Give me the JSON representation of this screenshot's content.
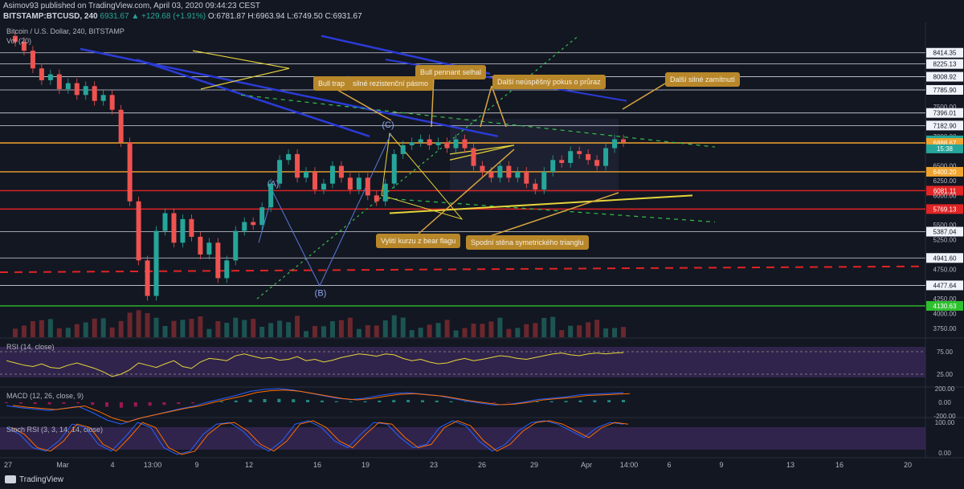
{
  "header": {
    "author_line": "Asimov93 published on TradingView.com, April 03, 2020 09:44:23 CEST",
    "symbol": "BITSTAMP:BTCUSD, 240",
    "last": "6931.67",
    "change": "▲ +129.68 (+1.91%)",
    "ohlc": "O:6781.87 H:6963.94 L:6749.50 C:6931.67"
  },
  "legends": {
    "main": "Bitcoin / U.S. Dollar, 240, BITSTAMP",
    "vol": "Vol (20)",
    "rsi": "RSI (14, close)",
    "macd": "MACD (12, 26, close, 9)",
    "stoch": "Stoch RSI (3, 3, 14, 14, close)"
  },
  "footer": {
    "brand": "TradingView"
  },
  "colors": {
    "background": "#131722",
    "up": "#26a69a",
    "down": "#ef5350",
    "orange": "#f0a430",
    "yellow": "#e6d43a",
    "blue_channel": "#2b3bd6",
    "green_dashed": "#35c04a",
    "red_level": "#e02424",
    "green_level": "#2ec02e",
    "note_bg": "#b8872a",
    "rsi_band": "#3d2b5e"
  },
  "annotations": [
    {
      "key": "bull_trap",
      "text": "Bull trap"
    },
    {
      "key": "silne",
      "text": "silné rezistenční pásmo"
    },
    {
      "key": "pennant",
      "text": "Bull pennant selhal"
    },
    {
      "key": "dalsi1",
      "text": "Další neúspěšný pokus o průraz"
    },
    {
      "key": "dalsi2",
      "text": "Další silné zamítnutí"
    },
    {
      "key": "vyliti",
      "text": "Vylití kurzu z bear flagu"
    },
    {
      "key": "spodni",
      "text": "Spodní stěna symetrického trianglu"
    }
  ],
  "wave_labels": [
    "(A)",
    "(B)",
    "(C)"
  ],
  "chart_data": {
    "type": "candlestick",
    "price_axis": {
      "ticks": [
        "8414.35",
        "8225.13",
        "8008.92",
        "7785.90",
        "7500.00",
        "7396.01",
        "7182.90",
        "7000.00",
        "6931.67",
        "6888.67",
        "6500.00",
        "6400.20",
        "6250.00",
        "6081.11",
        "6000.00",
        "5769.13",
        "5500.00",
        "5387.04",
        "5250.00",
        "4941.60",
        "4750.00",
        "4477.64",
        "4250.00",
        "4130.63",
        "4000.00",
        "3750.00"
      ],
      "highlighted": [
        {
          "label": "6931.67",
          "color": "#26a69a"
        },
        {
          "label": "15:38",
          "color": "#26a69a"
        },
        {
          "label": "6888.67",
          "color": "#f0a430"
        },
        {
          "label": "6400.20",
          "color": "#f0a430"
        },
        {
          "label": "6081.11",
          "color": "#e02424"
        },
        {
          "label": "5769.13",
          "color": "#e02424"
        },
        {
          "label": "4130.63",
          "color": "#2ec02e"
        }
      ]
    },
    "time_axis": [
      "27",
      "Mar",
      "4",
      "13:00",
      "9",
      "12",
      "16",
      "19",
      "23",
      "26",
      "29",
      "Apr",
      "14:00",
      "6",
      "9",
      "13",
      "16",
      "20"
    ],
    "horizontal_levels": [
      {
        "value": 8414.35,
        "color": "#d1d4dc"
      },
      {
        "value": 8225.13,
        "color": "#d1d4dc"
      },
      {
        "value": 8008.92,
        "color": "#d1d4dc"
      },
      {
        "value": 7785.9,
        "color": "#d1d4dc"
      },
      {
        "value": 7396.01,
        "color": "#d1d4dc"
      },
      {
        "value": 7182.9,
        "color": "#d1d4dc"
      },
      {
        "value": 6888.67,
        "color": "#f0a430"
      },
      {
        "value": 6400.2,
        "color": "#f0a430"
      },
      {
        "value": 6081.11,
        "color": "#e02424"
      },
      {
        "value": 5769.13,
        "color": "#e02424"
      },
      {
        "value": 5387.04,
        "color": "#d1d4dc"
      },
      {
        "value": 4941.6,
        "color": "#d1d4dc"
      },
      {
        "value": 4477.64,
        "color": "#d1d4dc"
      },
      {
        "value": 4130.63,
        "color": "#2ec02e"
      }
    ],
    "rsi": {
      "levels": [
        "75.00",
        "25.00"
      ]
    },
    "macd": {
      "levels": [
        "200.00",
        "0.00",
        "-200.00"
      ]
    },
    "stoch_rsi": {
      "levels": [
        "100.00",
        "0.00"
      ]
    },
    "price_path": [
      8700,
      8600,
      8450,
      8150,
      7950,
      8050,
      7800,
      7900,
      7700,
      7850,
      7600,
      7700,
      7450,
      6900,
      5900,
      4900,
      4300,
      5400,
      5700,
      5200,
      5600,
      5300,
      5000,
      5200,
      4600,
      4900,
      5400,
      5550,
      5500,
      5800,
      6200,
      6600,
      6700,
      6300,
      6400,
      6100,
      6200,
      6500,
      6300,
      6100,
      6300,
      6000,
      5900,
      6200,
      6700,
      6850,
      6900,
      6950,
      6850,
      6900,
      6800,
      6950,
      6800,
      6500,
      6400,
      6300,
      6500,
      6300,
      6400,
      6200,
      6100,
      6400,
      6600,
      6550,
      6750,
      6700,
      6600,
      6500,
      6800,
      6950,
      6900
    ],
    "rsi_path": [
      55,
      50,
      45,
      42,
      48,
      40,
      38,
      45,
      50,
      44,
      38,
      30,
      20,
      25,
      35,
      50,
      45,
      40,
      48,
      55,
      42,
      38,
      52,
      60,
      58,
      55,
      66,
      70,
      65,
      60,
      62,
      56,
      58,
      64,
      55,
      58,
      52,
      56,
      62,
      66,
      70,
      68,
      65,
      70,
      68,
      60,
      55,
      58,
      52,
      48,
      50,
      56,
      60,
      55,
      58,
      62,
      66,
      64,
      60,
      58,
      62,
      66,
      70,
      72,
      68,
      66,
      70,
      72,
      70,
      72,
      73
    ],
    "macd_path": [
      -50,
      -80,
      -100,
      -120,
      -90,
      -60,
      -150,
      -260,
      -320,
      -250,
      -200,
      -150,
      -100,
      -60,
      0,
      50,
      100,
      160,
      190,
      200,
      180,
      140,
      100,
      60,
      40,
      60,
      100,
      130,
      140,
      120,
      100,
      60,
      20,
      -10,
      -40,
      -30,
      0,
      40,
      60,
      80,
      110,
      120,
      130,
      140
    ],
    "stoch_path": [
      80,
      60,
      20,
      10,
      40,
      90,
      80,
      30,
      10,
      50,
      95,
      80,
      20,
      0,
      10,
      60,
      90,
      95,
      70,
      30,
      10,
      40,
      90,
      100,
      80,
      40,
      20,
      60,
      95,
      90,
      50,
      20,
      30,
      80,
      100,
      85,
      40,
      10,
      30,
      70,
      95,
      100,
      90,
      70,
      50,
      80,
      95,
      90
    ]
  }
}
